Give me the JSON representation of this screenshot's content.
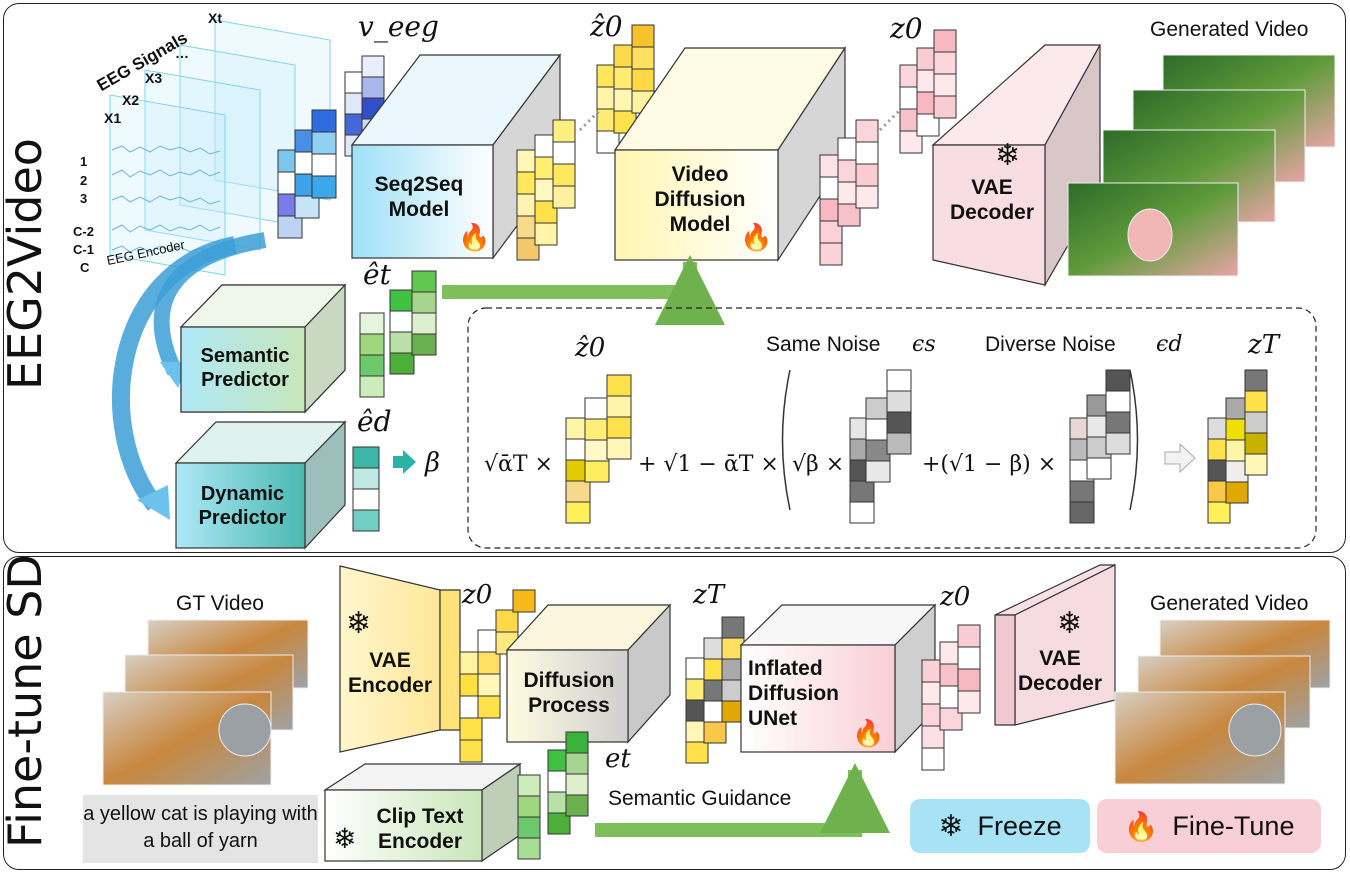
{
  "eeg2video": {
    "side_title": "EEG2Video",
    "eeg_signals": "EEG Signals",
    "channel_labels": [
      "X1",
      "X2",
      "X3",
      "…",
      "Xt"
    ],
    "row_labels": [
      "1",
      "2",
      "3",
      "C-2",
      "C-1",
      "C"
    ],
    "eeg_encoder": "EEG Encoder",
    "v_eeg": "v_eeg",
    "seq2seq": "Seq2Seq\nModel",
    "z0_hat": "ẑ0",
    "video_diffusion": "Video\nDiffusion\nModel",
    "z0": "z0",
    "vae_decoder": "VAE\nDecoder",
    "generated_video": "Generated Video",
    "e_t_hat": "êt",
    "semantic_predictor": "Semantic\nPredictor",
    "e_d_hat": "êd",
    "dynamic_predictor": "Dynamic\nPredictor",
    "beta": "β",
    "noise_box": {
      "z0_hat": "ẑ0",
      "same_noise": "Same Noise",
      "eps_s": "ϵs",
      "diverse_noise": "Diverse Noise",
      "eps_d": "ϵd",
      "z_T": "zT",
      "term1": "√ᾱT ×",
      "plus1": "+ √1 − ᾱT ×",
      "sqrt_beta": "√β ×",
      "plus2": "+(√1 − β) ×"
    }
  },
  "finetune": {
    "side_title": "Fine-tune SD",
    "gt_video": "GT Video",
    "vae_encoder": "VAE\nEncoder",
    "z0_a": "z0",
    "diffusion_process": "Diffusion\nProcess",
    "z_T": "zT",
    "inflated_unet": "Inflated\nDiffusion\nUNet",
    "z0_b": "z0",
    "vae_decoder": "VAE\nDecoder",
    "generated_video": "Generated Video",
    "caption": "a yellow cat is playing with a ball of yarn",
    "clip_text": "Clip Text\nEncoder",
    "e_t": "et",
    "semantic_guidance": "Semantic Guidance"
  },
  "legend": {
    "freeze": "Freeze",
    "finetune": "Fine-Tune",
    "freeze_color": "#a8e3f5",
    "finetune_color": "#f8cfd6"
  },
  "icons": [
    "snowflake-icon",
    "flame-icon",
    "arrow-icon"
  ]
}
